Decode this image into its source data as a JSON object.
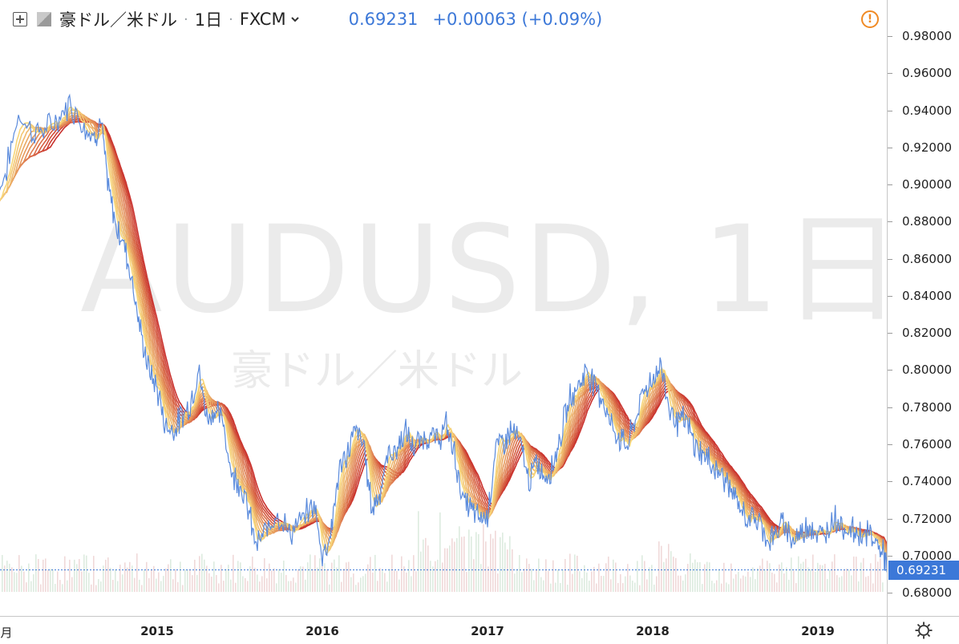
{
  "header": {
    "symbol_name": "豪ドル／米ドル",
    "interval": "1日",
    "exchange": "FXCM",
    "last_price": "0.69231",
    "change": "+0.00063 (+0.09%)"
  },
  "watermark": {
    "symbol": "AUDUSD, 1日",
    "name": "豪ドル／米ドル"
  },
  "colors": {
    "price_line": "#5b8bdc",
    "ribbon_fast": "#f7d679",
    "ribbon_slow": "#c9302c",
    "price_tag": "#3c78d8",
    "alert": "#f08a24"
  },
  "icons": [
    "expand-icon",
    "flag-icon",
    "dropdown-chevron-icon",
    "alert-icon",
    "settings-gear-icon"
  ],
  "chart_data": {
    "type": "line",
    "title": "",
    "xlabel": "",
    "ylabel": "",
    "x_tick_labels": [
      "月",
      "2015",
      "2016",
      "2017",
      "2018",
      "2019"
    ],
    "y_tick_labels": [
      "0.98000",
      "0.96000",
      "0.94000",
      "0.92000",
      "0.90000",
      "0.88000",
      "0.86000",
      "0.84000",
      "0.82000",
      "0.80000",
      "0.78000",
      "0.76000",
      "0.74000",
      "0.72000",
      "0.70000",
      "0.68000"
    ],
    "y_ticks": [
      0.98,
      0.96,
      0.94,
      0.92,
      0.9,
      0.88,
      0.86,
      0.84,
      0.82,
      0.8,
      0.78,
      0.76,
      0.74,
      0.72,
      0.7,
      0.68
    ],
    "ylim": [
      0.6675,
      0.9995
    ],
    "current_price": 0.69231,
    "current_price_label": "0.69231",
    "grid": false,
    "legend": "none",
    "series": [
      {
        "kind": "price",
        "x": [
          2014.0,
          2014.08,
          2014.16,
          2014.25,
          2014.33,
          2014.4,
          2014.47,
          2014.55,
          2014.62,
          2014.66,
          2014.7,
          2014.75,
          2014.8,
          2014.85,
          2014.9,
          2014.95,
          2015.0,
          2015.05,
          2015.1,
          2015.15,
          2015.2,
          2015.25,
          2015.3,
          2015.35,
          2015.4,
          2015.45,
          2015.5,
          2015.55,
          2015.6,
          2015.66,
          2015.72,
          2015.8,
          2015.87,
          2015.95,
          2016.0,
          2016.05,
          2016.1,
          2016.15,
          2016.2,
          2016.25,
          2016.3,
          2016.35,
          2016.4,
          2016.45,
          2016.5,
          2016.55,
          2016.6,
          2016.65,
          2016.7,
          2016.75,
          2016.8,
          2016.85,
          2016.9,
          2016.95,
          2017.0,
          2017.05,
          2017.1,
          2017.15,
          2017.2,
          2017.25,
          2017.3,
          2017.35,
          2017.4,
          2017.45,
          2017.5,
          2017.55,
          2017.6,
          2017.65,
          2017.7,
          2017.75,
          2017.8,
          2017.85,
          2017.9,
          2017.95,
          2018.0,
          2018.05,
          2018.1,
          2018.15,
          2018.2,
          2018.25,
          2018.3,
          2018.35,
          2018.4,
          2018.45,
          2018.5,
          2018.55,
          2018.6,
          2018.65,
          2018.7,
          2018.75,
          2018.8,
          2018.85,
          2018.9,
          2018.95,
          2019.0,
          2019.05,
          2019.1,
          2019.15,
          2019.2,
          2019.25,
          2019.3,
          2019.35,
          2019.4,
          2019.42
        ],
        "y": [
          0.888,
          0.905,
          0.938,
          0.928,
          0.93,
          0.935,
          0.944,
          0.933,
          0.925,
          0.935,
          0.9,
          0.878,
          0.868,
          0.848,
          0.82,
          0.8,
          0.79,
          0.77,
          0.768,
          0.775,
          0.782,
          0.8,
          0.775,
          0.778,
          0.772,
          0.744,
          0.74,
          0.725,
          0.705,
          0.713,
          0.724,
          0.712,
          0.718,
          0.728,
          0.7,
          0.712,
          0.745,
          0.755,
          0.768,
          0.76,
          0.725,
          0.735,
          0.755,
          0.757,
          0.767,
          0.758,
          0.762,
          0.765,
          0.762,
          0.77,
          0.755,
          0.73,
          0.725,
          0.72,
          0.722,
          0.758,
          0.762,
          0.768,
          0.76,
          0.74,
          0.75,
          0.742,
          0.75,
          0.768,
          0.785,
          0.792,
          0.8,
          0.792,
          0.784,
          0.77,
          0.763,
          0.76,
          0.775,
          0.79,
          0.795,
          0.803,
          0.78,
          0.772,
          0.773,
          0.76,
          0.755,
          0.75,
          0.745,
          0.74,
          0.73,
          0.722,
          0.72,
          0.718,
          0.708,
          0.712,
          0.718,
          0.708,
          0.712,
          0.718,
          0.71,
          0.712,
          0.722,
          0.715,
          0.714,
          0.712,
          0.712,
          0.708,
          0.7,
          0.692
        ]
      }
    ],
    "ribbon_ma_count": 12,
    "volume_bars_shown": true
  }
}
